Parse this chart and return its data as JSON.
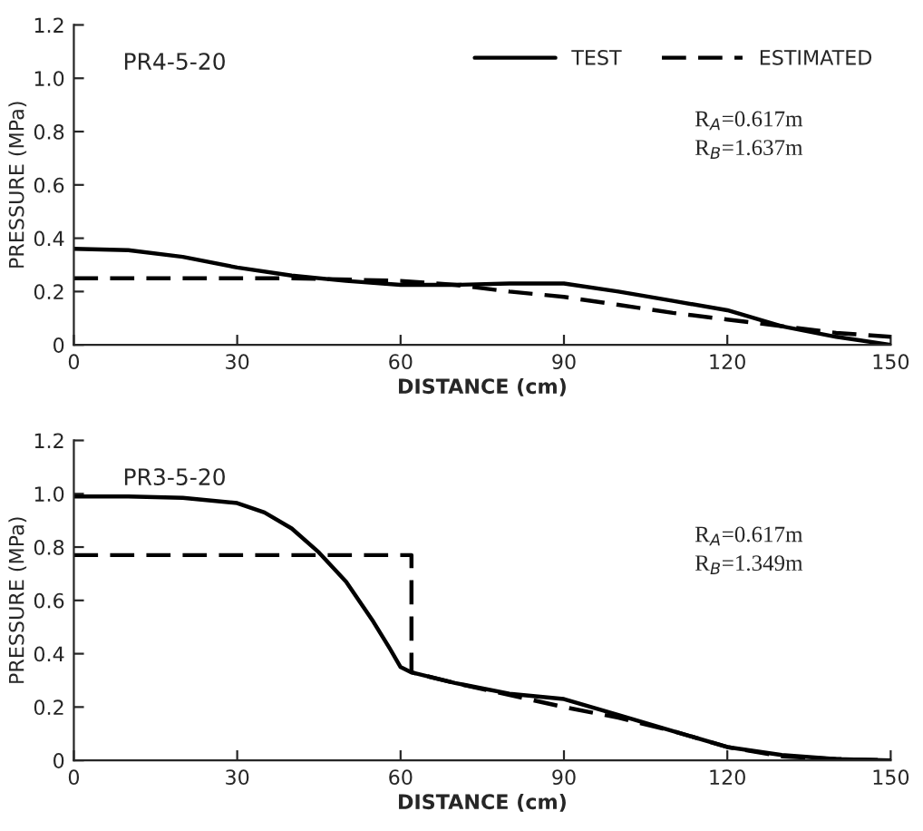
{
  "chart_data": [
    {
      "type": "line",
      "xlabel": "DISTANCE (cm)",
      "ylabel": "PRESSURE (MPa)",
      "xlim": [
        0,
        150
      ],
      "ylim": [
        0,
        1.2
      ],
      "xticks": [
        0,
        30,
        60,
        90,
        120,
        150
      ],
      "yticks": [
        0,
        0.2,
        0.4,
        0.6,
        0.8,
        {
          "value": 1.0,
          "label": "1.0"
        },
        1.2
      ],
      "grid": false,
      "legend": "top right",
      "annotations": [
        "PR4-5-20",
        "R$_{A}$=0.617m",
        "R$_{B}$=1.637m"
      ],
      "series": [
        {
          "name": "TEST",
          "color": "#000000",
          "line_style": "solid",
          "x": [
            0,
            10,
            20,
            30,
            40,
            50,
            60,
            70,
            80,
            90,
            100,
            110,
            120,
            130,
            140,
            150
          ],
          "values": [
            0.36,
            0.355,
            0.33,
            0.29,
            0.26,
            0.24,
            0.225,
            0.225,
            0.23,
            0.23,
            0.2,
            0.165,
            0.13,
            0.07,
            0.03,
            0.0
          ]
        },
        {
          "name": "ESTIMATED",
          "color": "#000000",
          "line_style": "dashed",
          "x": [
            0,
            40,
            60,
            70,
            80,
            90,
            100,
            110,
            120,
            130,
            140,
            150
          ],
          "values": [
            0.25,
            0.25,
            0.24,
            0.225,
            0.2,
            0.18,
            0.15,
            0.12,
            0.095,
            0.07,
            0.045,
            0.03
          ]
        }
      ]
    },
    {
      "type": "line",
      "xlabel": "DISTANCE (cm)",
      "ylabel": "PRESSURE (MPa)",
      "xlim": [
        0,
        150
      ],
      "ylim": [
        0,
        1.2
      ],
      "xticks": [
        0,
        30,
        60,
        90,
        120,
        150
      ],
      "yticks": [
        0,
        0.2,
        0.4,
        0.6,
        0.8,
        {
          "value": 1.0,
          "label": "1.0"
        },
        1.2
      ],
      "grid": false,
      "annotations": [
        "PR3-5-20",
        "R$_{A}$=0.617m",
        "R$_{B}$=1.349m"
      ],
      "series": [
        {
          "color": "#000000",
          "line_style": "solid",
          "x": [
            0,
            10,
            20,
            30,
            35,
            40,
            45,
            50,
            55,
            58,
            60,
            62,
            70,
            80,
            90,
            100,
            110,
            120,
            130,
            140,
            150
          ],
          "values": [
            0.99,
            0.99,
            0.985,
            0.965,
            0.93,
            0.87,
            0.78,
            0.67,
            0.52,
            0.42,
            0.35,
            0.33,
            0.29,
            0.25,
            0.23,
            0.17,
            0.11,
            0.05,
            0.02,
            0.005,
            0.0
          ]
        },
        {
          "color": "#000000",
          "line_style": "dashed",
          "x": [
            0,
            62,
            62,
            70,
            80,
            90,
            100,
            110,
            120,
            130,
            140,
            150
          ],
          "values": [
            0.77,
            0.77,
            0.33,
            0.29,
            0.245,
            0.2,
            0.16,
            0.11,
            0.05,
            0.015,
            0.005,
            0.0
          ]
        }
      ]
    }
  ]
}
